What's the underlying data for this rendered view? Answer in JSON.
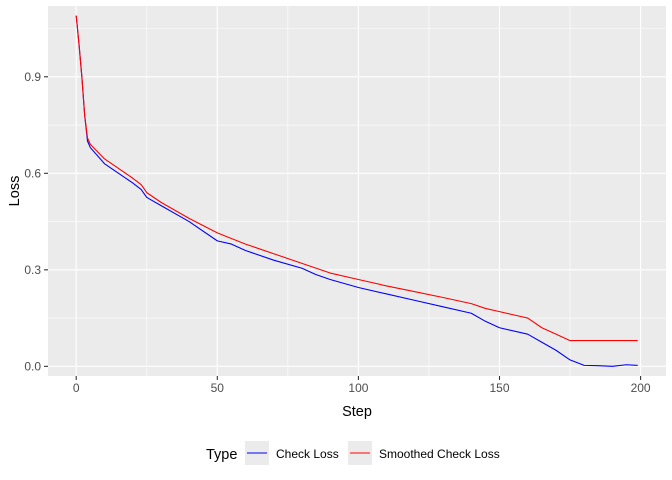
{
  "chart_data": {
    "type": "line",
    "xlabel": "Step",
    "ylabel": "Loss",
    "xlim": [
      -10,
      209
    ],
    "ylim": [
      -0.03,
      1.12
    ],
    "xticks": [
      0,
      50,
      100,
      150,
      200
    ],
    "yticks": [
      0.0,
      0.3,
      0.6,
      0.9
    ],
    "ytick_labels": [
      "0.0",
      "0.3",
      "0.6",
      "0.9"
    ],
    "grid": true,
    "panel_background": "#ebebeb",
    "legend": {
      "title": "Type",
      "position": "bottom",
      "entries": [
        "Check Loss",
        "Smoothed Check Loss"
      ]
    },
    "series": [
      {
        "name": "Check Loss",
        "color": "#0000ff",
        "x": [
          0,
          1,
          2,
          3,
          4,
          5,
          10,
          15,
          20,
          23,
          25,
          30,
          40,
          50,
          55,
          60,
          70,
          80,
          85,
          90,
          100,
          110,
          120,
          130,
          140,
          145,
          150,
          160,
          165,
          170,
          175,
          180,
          185,
          190,
          195,
          199
        ],
        "y": [
          1.09,
          1.0,
          0.9,
          0.78,
          0.7,
          0.68,
          0.63,
          0.6,
          0.57,
          0.55,
          0.525,
          0.5,
          0.45,
          0.39,
          0.38,
          0.36,
          0.33,
          0.305,
          0.285,
          0.27,
          0.245,
          0.225,
          0.205,
          0.185,
          0.165,
          0.14,
          0.12,
          0.1,
          0.075,
          0.05,
          0.02,
          0.003,
          0.002,
          0.0,
          0.005,
          0.003
        ]
      },
      {
        "name": "Smoothed Check Loss",
        "color": "#ff0000",
        "x": [
          0,
          1,
          2,
          3,
          4,
          5,
          10,
          15,
          20,
          23,
          25,
          30,
          40,
          50,
          60,
          70,
          80,
          90,
          100,
          110,
          120,
          130,
          140,
          145,
          150,
          155,
          160,
          165,
          170,
          175,
          177,
          185,
          199
        ],
        "y": [
          1.09,
          1.0,
          0.9,
          0.78,
          0.71,
          0.69,
          0.645,
          0.615,
          0.585,
          0.565,
          0.54,
          0.51,
          0.46,
          0.415,
          0.38,
          0.35,
          0.32,
          0.29,
          0.27,
          0.25,
          0.232,
          0.214,
          0.195,
          0.18,
          0.17,
          0.16,
          0.15,
          0.12,
          0.1,
          0.08,
          0.08,
          0.08,
          0.08
        ]
      }
    ]
  }
}
